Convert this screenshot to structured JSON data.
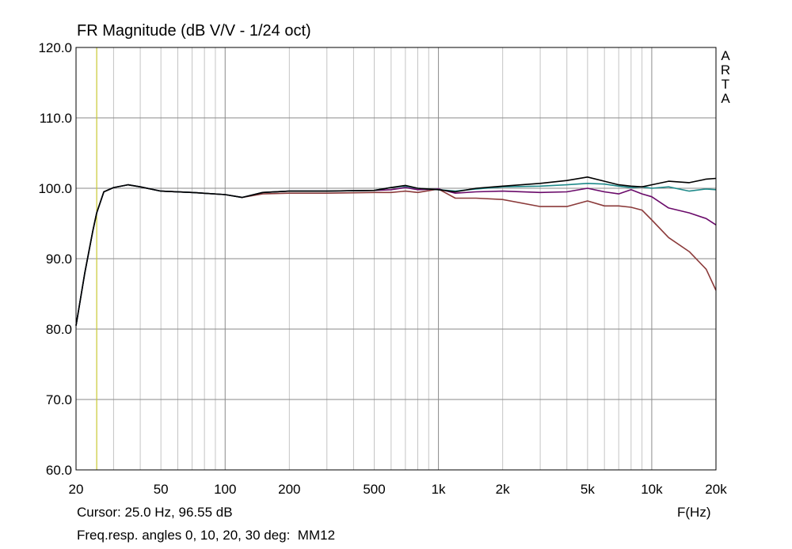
{
  "title": "FR Magnitude (dB V/V - 1/24 oct)",
  "watermark": [
    "A",
    "R",
    "T",
    "A"
  ],
  "cursor_text": "Cursor: 25.0 Hz, 96.55 dB",
  "description_text": "Freq.resp. angles 0, 10, 20, 30 deg:  MM12",
  "x_unit_label": "F(Hz)",
  "chart_data": {
    "type": "line",
    "title": "FR Magnitude (dB V/V - 1/24 oct)",
    "xlabel": "F(Hz)",
    "ylabel": "",
    "x_scale": "log",
    "xlim": [
      20,
      20000
    ],
    "ylim": [
      60,
      120
    ],
    "grid": true,
    "cursor_x": 25.0,
    "cursor_color": "#c8c832",
    "x_ticks": [
      {
        "v": 20,
        "label": "20"
      },
      {
        "v": 50,
        "label": "50"
      },
      {
        "v": 100,
        "label": "100"
      },
      {
        "v": 200,
        "label": "200"
      },
      {
        "v": 500,
        "label": "500"
      },
      {
        "v": 1000,
        "label": "1k"
      },
      {
        "v": 2000,
        "label": "2k"
      },
      {
        "v": 5000,
        "label": "5k"
      },
      {
        "v": 10000,
        "label": "10k"
      },
      {
        "v": 20000,
        "label": "20k"
      }
    ],
    "y_ticks": [
      {
        "v": 60,
        "label": "60.0"
      },
      {
        "v": 70,
        "label": "70.0"
      },
      {
        "v": 80,
        "label": "80.0"
      },
      {
        "v": 90,
        "label": "90.0"
      },
      {
        "v": 100,
        "label": "100.0"
      },
      {
        "v": 110,
        "label": "110.0"
      },
      {
        "v": 120,
        "label": "120.0"
      }
    ],
    "x": [
      20,
      22,
      24,
      25,
      27,
      30,
      35,
      40,
      50,
      70,
      100,
      120,
      150,
      200,
      300,
      500,
      600,
      700,
      800,
      1000,
      1200,
      1500,
      2000,
      3000,
      4000,
      5000,
      6000,
      7000,
      8000,
      9000,
      10000,
      12000,
      15000,
      18000,
      20000
    ],
    "series": [
      {
        "color": "#000000",
        "values": [
          80.5,
          88,
          94,
          96.5,
          99.5,
          100.1,
          100.5,
          100.2,
          99.6,
          99.4,
          99.1,
          98.7,
          99.4,
          99.6,
          99.6,
          99.7,
          100.1,
          100.4,
          100.0,
          99.8,
          99.5,
          100.0,
          100.3,
          100.7,
          101.1,
          101.6,
          101.0,
          100.5,
          100.3,
          100.2,
          100.5,
          101.0,
          100.8,
          101.3,
          101.4
        ]
      },
      {
        "color": "#1f8a8a",
        "values": [
          80.5,
          88,
          94,
          96.5,
          99.5,
          100.1,
          100.5,
          100.2,
          99.6,
          99.4,
          99.1,
          98.7,
          99.4,
          99.6,
          99.6,
          99.7,
          100.1,
          100.3,
          100.0,
          99.8,
          99.6,
          99.9,
          100.2,
          100.3,
          100.5,
          100.7,
          100.6,
          100.3,
          100.1,
          100.2,
          100.0,
          100.2,
          99.6,
          99.9,
          99.8
        ]
      },
      {
        "color": "#6a0a6a",
        "values": [
          80.5,
          88,
          94,
          96.5,
          99.5,
          100.1,
          100.5,
          100.2,
          99.6,
          99.4,
          99.1,
          98.7,
          99.4,
          99.6,
          99.6,
          99.7,
          99.8,
          100.1,
          99.8,
          99.9,
          99.3,
          99.5,
          99.6,
          99.4,
          99.5,
          100.0,
          99.5,
          99.2,
          99.8,
          99.2,
          98.8,
          97.2,
          96.5,
          95.7,
          94.8
        ]
      },
      {
        "color": "#8b3a3a",
        "values": [
          80.5,
          88,
          94,
          96.5,
          99.5,
          100.1,
          100.5,
          100.2,
          99.6,
          99.4,
          99.1,
          98.7,
          99.2,
          99.3,
          99.3,
          99.4,
          99.4,
          99.6,
          99.4,
          99.9,
          98.6,
          98.6,
          98.4,
          97.4,
          97.4,
          98.2,
          97.5,
          97.5,
          97.3,
          96.9,
          95.5,
          93.0,
          91.0,
          88.5,
          85.5
        ]
      }
    ]
  }
}
